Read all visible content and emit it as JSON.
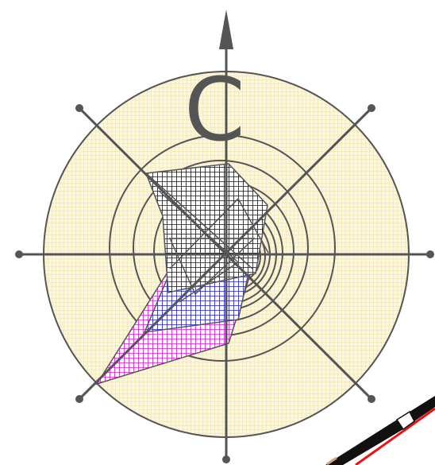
{
  "compass": {
    "letter": "C",
    "ring_color": "#555555",
    "disc_fill": "#fbf6dc",
    "disc_grid_color": "#efe2a2",
    "marker_icon": "bolt-marker-icon"
  },
  "shapes": {
    "dark_polygon": {
      "fill": "#2a2a3a",
      "grid": "#ffffff",
      "label": ""
    },
    "blue_polygon": {
      "fill": "#2222cc",
      "grid": "#ffffff",
      "label": ""
    },
    "magenta_polygon": {
      "fill": "#dd22dd",
      "grid": "#ffffff",
      "label": ""
    }
  },
  "pencil": {
    "icon": "pencil-icon",
    "body_color": "#111111",
    "line_color": "#ee1111"
  }
}
